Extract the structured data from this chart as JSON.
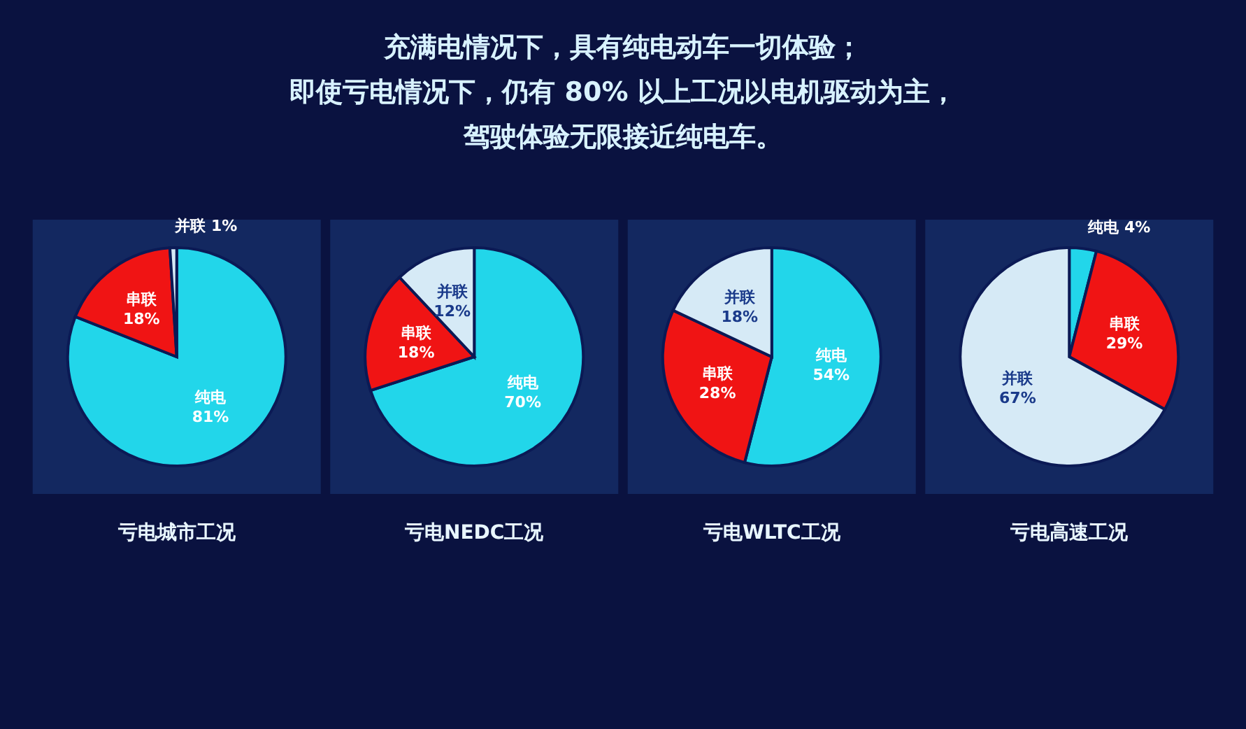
{
  "chart_data": [
    {
      "type": "other",
      "annotations": [
        "充满电情况下，具有纯电动车一切体验；",
        "即使亏电情况下，仍有 80% 以上工况以电机驱动为主，",
        "驾驶体验无限接近纯电车。"
      ]
    },
    {
      "type": "pie",
      "title": "亏电城市工况",
      "categories": [
        "纯电",
        "串联",
        "并联"
      ],
      "values": [
        81,
        18,
        1
      ],
      "value_labels": [
        "81%",
        "18%",
        "1%"
      ],
      "colors": [
        "#22d6ea",
        "#f01414",
        "#d6eaf6"
      ]
    },
    {
      "type": "pie",
      "title": "亏电NEDC工况",
      "categories": [
        "纯电",
        "串联",
        "并联"
      ],
      "values": [
        70,
        18,
        12
      ],
      "value_labels": [
        "70%",
        "18%",
        "12%"
      ],
      "colors": [
        "#22d6ea",
        "#f01414",
        "#d6eaf6"
      ]
    },
    {
      "type": "pie",
      "title": "亏电WLTC工况",
      "categories": [
        "纯电",
        "串联",
        "并联"
      ],
      "values": [
        54,
        28,
        18
      ],
      "value_labels": [
        "54%",
        "28%",
        "18%"
      ],
      "colors": [
        "#22d6ea",
        "#f01414",
        "#d6eaf6"
      ]
    },
    {
      "type": "pie",
      "title": "亏电高速工况",
      "categories": [
        "纯电",
        "串联",
        "并联"
      ],
      "values": [
        4,
        29,
        67
      ],
      "value_labels": [
        "4%",
        "29%",
        "67%"
      ],
      "colors": [
        "#22d6ea",
        "#f01414",
        "#d6eaf6"
      ]
    }
  ]
}
